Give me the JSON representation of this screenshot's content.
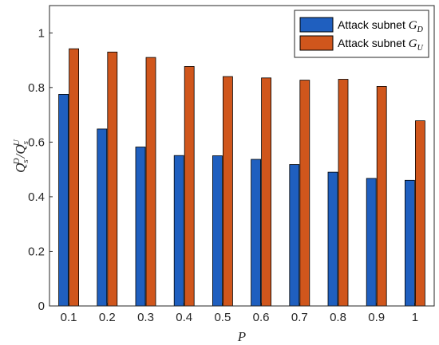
{
  "chart_data": {
    "type": "bar",
    "categories": [
      "0.1",
      "0.2",
      "0.3",
      "0.4",
      "0.5",
      "0.6",
      "0.7",
      "0.8",
      "0.9",
      "1"
    ],
    "series": [
      {
        "name": "Attack subnet G_D",
        "label_main": "Attack subnet ",
        "label_var": "G",
        "label_sub": "D",
        "color": "#1F5FBF",
        "values": [
          0.775,
          0.648,
          0.582,
          0.551,
          0.55,
          0.537,
          0.518,
          0.49,
          0.467,
          0.46
        ]
      },
      {
        "name": "Attack subnet G_U",
        "label_main": "Attack subnet ",
        "label_var": "G",
        "label_sub": "U",
        "color": "#D0561C",
        "values": [
          0.942,
          0.93,
          0.91,
          0.877,
          0.84,
          0.835,
          0.827,
          0.83,
          0.804,
          0.678
        ]
      }
    ],
    "xlabel": "P",
    "ylabel": {
      "q1": "Q",
      "q1_sup": "D",
      "q1_sub": "s",
      "slash": "/",
      "q2": "Q",
      "q2_sup": "U",
      "q2_sub": "s"
    },
    "ylim": [
      0,
      1.1
    ],
    "yticks": [
      "0",
      "0.2",
      "0.4",
      "0.6",
      "0.8",
      "1"
    ],
    "ytick_values": [
      0,
      0.2,
      0.4,
      0.6,
      0.8,
      1.0
    ],
    "legend_position": "top-right",
    "grid": false
  }
}
